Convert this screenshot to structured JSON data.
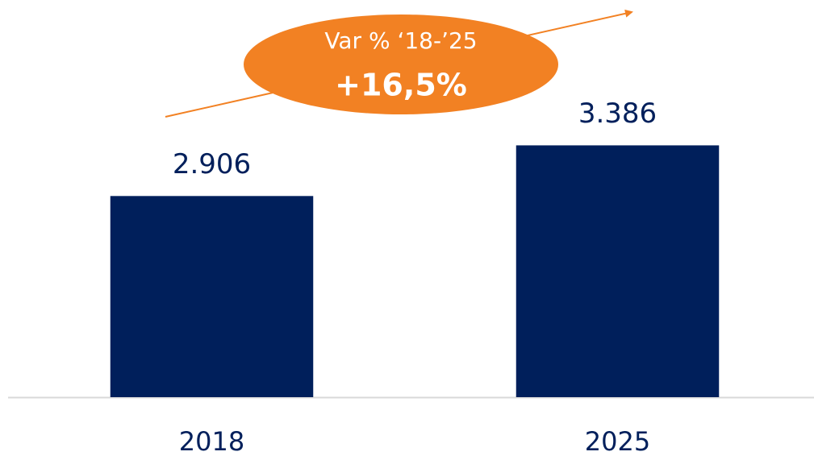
{
  "chart_data": {
    "type": "bar",
    "categories": [
      "2018",
      "2025"
    ],
    "values": [
      2906,
      3386
    ],
    "value_labels": [
      "2.906",
      "3.386"
    ],
    "color": "#001f5b",
    "ylim": [
      1000,
      4000
    ],
    "annotations": [
      "Var % ‘18-’25",
      "+16,5%"
    ],
    "annotation_color": "#f28123"
  }
}
